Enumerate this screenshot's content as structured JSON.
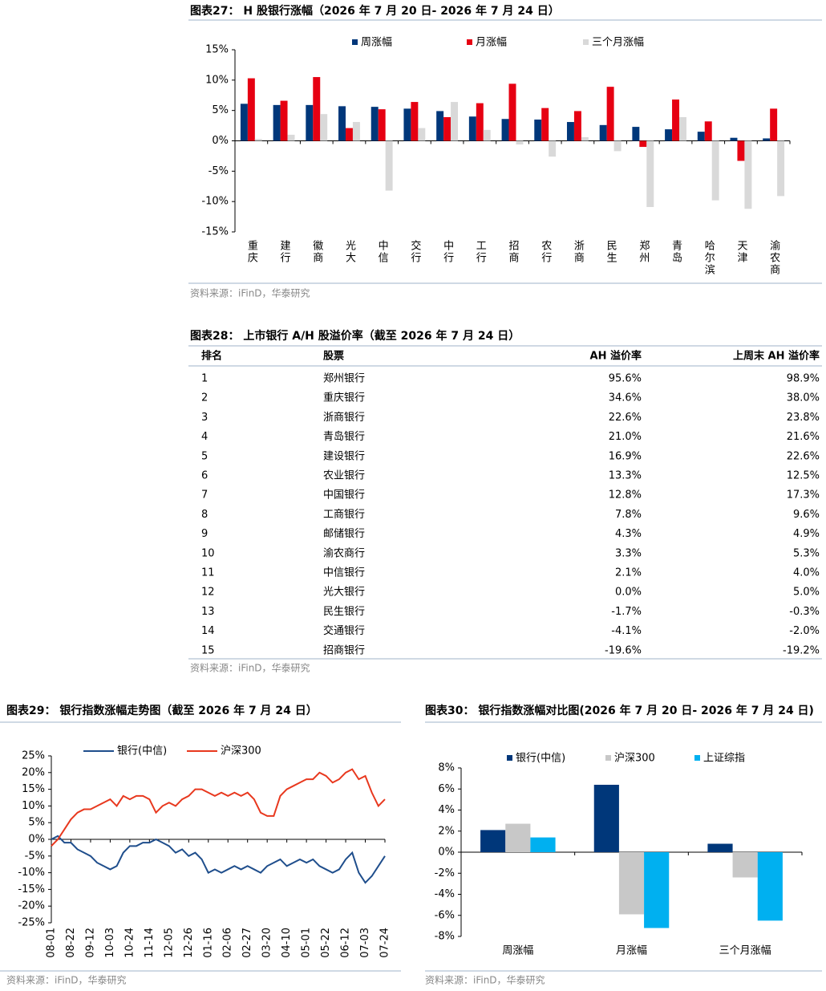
{
  "chart_data": [
    {
      "type": "bar",
      "title": "图表27： H 股银行涨幅（2026 年 7 月 20 日- 2026 年 7 月 24 日）",
      "categories": [
        "重庆",
        "建行",
        "徽商",
        "光大",
        "中信",
        "交行",
        "中行",
        "工行",
        "招商",
        "农行",
        "浙商",
        "民生",
        "郑州",
        "青岛",
        "哈尔滨",
        "天津",
        "渝农商"
      ],
      "series": [
        {
          "name": "周涨幅",
          "color": "#00377a",
          "values": [
            6.1,
            5.9,
            5.9,
            5.7,
            5.6,
            5.3,
            4.9,
            4.0,
            3.6,
            3.5,
            3.1,
            2.6,
            2.3,
            1.9,
            1.5,
            0.5,
            0.4
          ]
        },
        {
          "name": "月涨幅",
          "color": "#e60012",
          "values": [
            10.3,
            6.6,
            10.5,
            2.1,
            5.2,
            6.4,
            3.9,
            6.2,
            9.4,
            5.4,
            4.9,
            8.9,
            -1.0,
            6.8,
            3.2,
            -3.3,
            5.3
          ]
        },
        {
          "name": "三个月涨幅",
          "color": "#d9d9d9",
          "values": [
            0.3,
            1.0,
            4.4,
            3.1,
            -8.2,
            2.1,
            6.4,
            1.8,
            -0.6,
            -2.6,
            0.6,
            -1.7,
            -10.9,
            3.9,
            -9.8,
            -11.2,
            -9.1
          ]
        }
      ],
      "ylim": [
        -15,
        15
      ],
      "yticks": [
        {
          "value": -15,
          "label": "-15%"
        },
        {
          "value": -10,
          "label": "-10%"
        },
        {
          "value": -5,
          "label": "-5%"
        },
        {
          "value": 0,
          "label": "0%"
        },
        {
          "value": 5,
          "label": "5%"
        },
        {
          "value": 10,
          "label": "10%"
        },
        {
          "value": 15,
          "label": "15%"
        }
      ],
      "grid": false,
      "legend": "top",
      "source": "资料来源：iFinD，华泰研究"
    },
    {
      "type": "line",
      "title": "图表29： 银行指数涨幅走势图（截至 2026 年 7 月 24 日）",
      "categories": [
        "08-01",
        null,
        null,
        "08-22",
        null,
        null,
        "09-12",
        null,
        null,
        "10-03",
        null,
        null,
        "10-24",
        null,
        null,
        "11-14",
        null,
        null,
        "12-05",
        null,
        null,
        "12-26",
        null,
        null,
        "01-16",
        null,
        null,
        "02-06",
        null,
        null,
        "02-27",
        null,
        null,
        "03-20",
        null,
        null,
        "04-10",
        null,
        null,
        "05-01",
        null,
        null,
        "05-22",
        null,
        null,
        "06-12",
        null,
        null,
        "07-03",
        null,
        null,
        "07-24"
      ],
      "series": [
        {
          "name": "银行(中信)",
          "color": "#1f4e8c",
          "values": [
            0,
            1,
            -1,
            -1,
            -3,
            -4,
            -5,
            -7,
            -8,
            -9,
            -8,
            -4,
            -2,
            -2,
            -1,
            -1,
            0,
            -1,
            -2,
            -4,
            -3,
            -5,
            -4,
            -6,
            -10,
            -9,
            -10,
            -9,
            -8,
            -9,
            -8,
            -9,
            -10,
            -8,
            -7,
            -6,
            -8,
            -7,
            -6,
            -7,
            -6,
            -8,
            -9,
            -10,
            -9,
            -6,
            -4,
            -10,
            -13,
            -11,
            -8,
            -5
          ]
        },
        {
          "name": "沪深300",
          "color": "#e8381e",
          "values": [
            -2,
            0,
            3,
            6,
            8,
            9,
            9,
            10,
            11,
            12,
            10,
            13,
            12,
            13,
            13,
            12,
            8,
            10,
            11,
            10,
            12,
            13,
            15,
            15,
            14,
            13,
            14,
            13,
            14,
            13,
            14,
            12,
            8,
            7,
            7,
            13,
            15,
            16,
            17,
            18,
            18,
            20,
            19,
            17,
            18,
            20,
            21,
            18,
            19,
            14,
            10,
            12
          ]
        }
      ],
      "ylim": [
        -25,
        25
      ],
      "yticks": [
        {
          "value": -25,
          "label": "-25%"
        },
        {
          "value": -20,
          "label": "-20%"
        },
        {
          "value": -15,
          "label": "-15%"
        },
        {
          "value": -10,
          "label": "-10%"
        },
        {
          "value": -5,
          "label": "-5%"
        },
        {
          "value": 0,
          "label": "0%"
        },
        {
          "value": 5,
          "label": "5%"
        },
        {
          "value": 10,
          "label": "10%"
        },
        {
          "value": 15,
          "label": "15%"
        },
        {
          "value": 20,
          "label": "20%"
        },
        {
          "value": 25,
          "label": "25%"
        }
      ],
      "grid": false,
      "legend": "top",
      "source": "资料来源：iFinD，华泰研究"
    },
    {
      "type": "bar",
      "title": "图表30： 银行指数涨幅对比图(2026 年 7 月 20 日- 2026 年 7 月 24 日)",
      "categories": [
        "周涨幅",
        "月涨幅",
        "三个月涨幅"
      ],
      "series": [
        {
          "name": "银行(中信)",
          "color": "#00377a",
          "values": [
            2.1,
            6.4,
            0.8
          ]
        },
        {
          "name": "沪深300",
          "color": "#c8c8c8",
          "values": [
            2.7,
            -5.9,
            -2.4
          ]
        },
        {
          "name": "上证综指",
          "color": "#00b0f0",
          "values": [
            1.4,
            -7.2,
            -6.5
          ]
        }
      ],
      "ylim": [
        -8,
        8
      ],
      "yticks": [
        {
          "value": -8,
          "label": "-8%"
        },
        {
          "value": -6,
          "label": "-6%"
        },
        {
          "value": -4,
          "label": "-4%"
        },
        {
          "value": -2,
          "label": "-2%"
        },
        {
          "value": 0,
          "label": "0%"
        },
        {
          "value": 2,
          "label": "2%"
        },
        {
          "value": 4,
          "label": "4%"
        },
        {
          "value": 6,
          "label": "6%"
        },
        {
          "value": 8,
          "label": "8%"
        }
      ],
      "grid": false,
      "legend": "top",
      "source": "资料来源：iFinD，华泰研究"
    }
  ],
  "table": {
    "title": "图表28： 上市银行 A/H 股溢价率（截至 2026 年 7 月 24 日）",
    "columns": [
      "排名",
      "股票",
      "AH 溢价率",
      "上周末 AH 溢价率"
    ],
    "rows": [
      [
        "1",
        "郑州银行",
        "95.6%",
        "98.9%"
      ],
      [
        "2",
        "重庆银行",
        "34.6%",
        "38.0%"
      ],
      [
        "3",
        "浙商银行",
        "22.6%",
        "23.8%"
      ],
      [
        "4",
        "青岛银行",
        "21.0%",
        "21.6%"
      ],
      [
        "5",
        "建设银行",
        "16.9%",
        "22.6%"
      ],
      [
        "6",
        "农业银行",
        "13.3%",
        "12.5%"
      ],
      [
        "7",
        "中国银行",
        "12.8%",
        "17.3%"
      ],
      [
        "8",
        "工商银行",
        "7.8%",
        "9.6%"
      ],
      [
        "9",
        "邮储银行",
        "4.3%",
        "4.9%"
      ],
      [
        "10",
        "渝农商行",
        "3.3%",
        "5.3%"
      ],
      [
        "11",
        "中信银行",
        "2.1%",
        "4.0%"
      ],
      [
        "12",
        "光大银行",
        "0.0%",
        "5.0%"
      ],
      [
        "13",
        "民生银行",
        "-1.7%",
        "-0.3%"
      ],
      [
        "14",
        "交通银行",
        "-4.1%",
        "-2.0%"
      ],
      [
        "15",
        "招商银行",
        "-19.6%",
        "-19.2%"
      ]
    ],
    "source": "资料来源：iFinD，华泰研究"
  }
}
